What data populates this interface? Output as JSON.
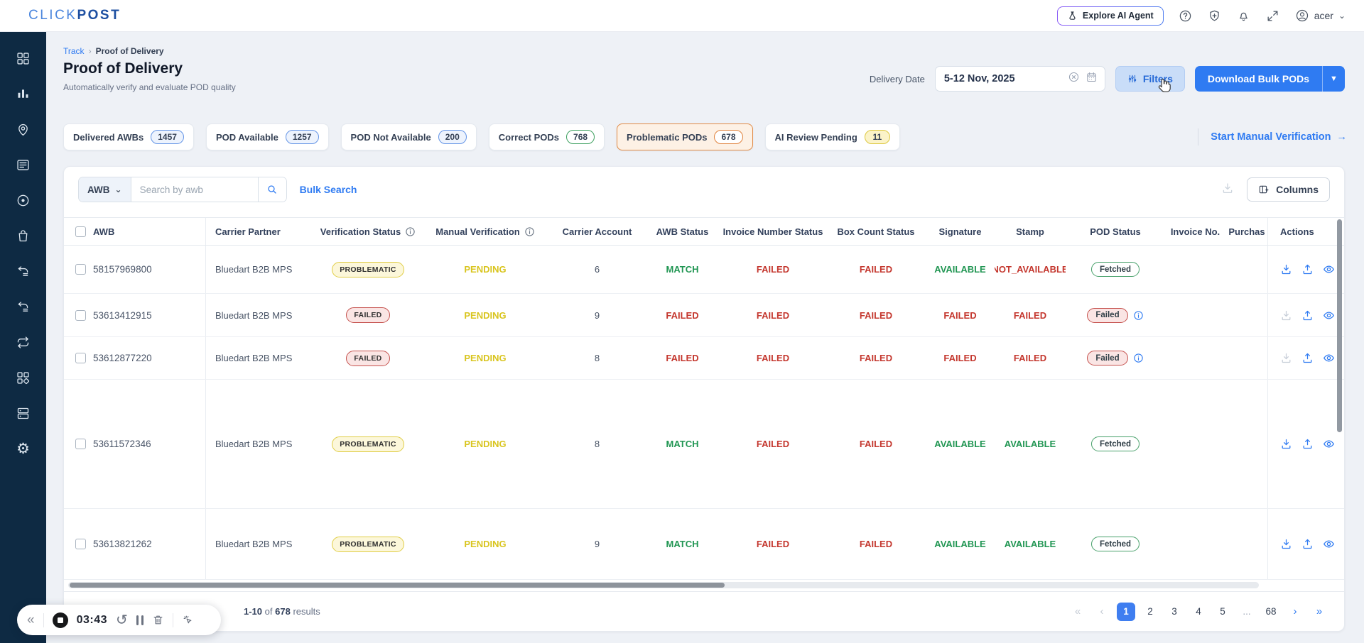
{
  "brand": {
    "logo_click": "CLICK",
    "logo_post": "POST"
  },
  "topbar": {
    "explore_ai_label": "Explore AI Agent",
    "username": "acer"
  },
  "breadcrumb": {
    "parent": "Track",
    "current": "Proof of Delivery"
  },
  "page": {
    "title": "Proof of Delivery",
    "subtitle": "Automatically verify and evaluate POD quality"
  },
  "filters_bar": {
    "delivery_date_label": "Delivery Date",
    "delivery_date_value": "5-12 Nov, 2025",
    "filters_label": "Filters",
    "download_bulk_label": "Download Bulk PODs"
  },
  "manual_verification_link": "Start Manual Verification",
  "chips": [
    {
      "label": "Delivered AWBs",
      "count": "1457",
      "badge": "blue",
      "selected": false
    },
    {
      "label": "POD Available",
      "count": "1257",
      "badge": "blue",
      "selected": false
    },
    {
      "label": "POD Not Available",
      "count": "200",
      "badge": "blue",
      "selected": false
    },
    {
      "label": "Correct PODs",
      "count": "768",
      "badge": "green",
      "selected": false
    },
    {
      "label": "Problematic PODs",
      "count": "678",
      "badge": "orange",
      "selected": true
    },
    {
      "label": "AI Review Pending",
      "count": "11",
      "badge": "yellow",
      "selected": false
    }
  ],
  "search": {
    "category": "AWB",
    "placeholder": "Search by awb",
    "bulk_search_label": "Bulk Search",
    "columns_label": "Columns"
  },
  "table": {
    "columns": [
      {
        "label": "AWB"
      },
      {
        "label": "Carrier Partner"
      },
      {
        "label": "Verification Status",
        "info": true
      },
      {
        "label": "Manual Verification",
        "info": true
      },
      {
        "label": "Carrier Account"
      },
      {
        "label": "AWB Status"
      },
      {
        "label": "Invoice Number Status"
      },
      {
        "label": "Box Count Status"
      },
      {
        "label": "Signature"
      },
      {
        "label": "Stamp"
      },
      {
        "label": "POD Status"
      },
      {
        "label": "Invoice No."
      },
      {
        "label": "Purchas"
      },
      {
        "label": "Actions"
      }
    ],
    "rows": [
      {
        "awb": "58157969800",
        "carrier": "Bluedart B2B MPS",
        "verification": "PROBLEMATIC",
        "manual": "PENDING",
        "account": "6",
        "awb_status": "MATCH",
        "invoice_status": "FAILED",
        "box_count": "FAILED",
        "signature": "AVAILABLE",
        "stamp": "NOT_AVAILABLE",
        "pod": {
          "label": "Fetched",
          "kind": "ok",
          "info": false
        },
        "download_enabled": true
      },
      {
        "awb": "53613412915",
        "carrier": "Bluedart B2B MPS",
        "verification": "FAILED",
        "manual": "PENDING",
        "account": "9",
        "awb_status": "FAILED",
        "invoice_status": "FAILED",
        "box_count": "FAILED",
        "signature": "FAILED",
        "stamp": "FAILED",
        "pod": {
          "label": "Failed",
          "kind": "bad",
          "info": true
        },
        "download_enabled": false
      },
      {
        "awb": "53612877220",
        "carrier": "Bluedart B2B MPS",
        "verification": "FAILED",
        "manual": "PENDING",
        "account": "8",
        "awb_status": "FAILED",
        "invoice_status": "FAILED",
        "box_count": "FAILED",
        "signature": "FAILED",
        "stamp": "FAILED",
        "pod": {
          "label": "Failed",
          "kind": "bad",
          "info": true
        },
        "download_enabled": false
      },
      {
        "awb": "53611572346",
        "carrier": "Bluedart B2B MPS",
        "verification": "PROBLEMATIC",
        "manual": "PENDING",
        "account": "8",
        "awb_status": "MATCH",
        "invoice_status": "FAILED",
        "box_count": "FAILED",
        "signature": "AVAILABLE",
        "stamp": "AVAILABLE",
        "pod": {
          "label": "Fetched",
          "kind": "ok",
          "info": false
        },
        "download_enabled": true
      },
      {
        "awb": "53613821262",
        "carrier": "Bluedart B2B MPS",
        "verification": "PROBLEMATIC",
        "manual": "PENDING",
        "account": "9",
        "awb_status": "MATCH",
        "invoice_status": "FAILED",
        "box_count": "FAILED",
        "signature": "AVAILABLE",
        "stamp": "AVAILABLE",
        "pod": {
          "label": "Fetched",
          "kind": "ok",
          "info": false
        },
        "download_enabled": true
      }
    ]
  },
  "footer": {
    "range": "1-10",
    "of_label": "of",
    "total": "678",
    "results_label": "results",
    "pages": [
      "1",
      "2",
      "3",
      "4",
      "5",
      "...",
      "68"
    ],
    "active_page": "1"
  },
  "recorder": {
    "time": "03:43"
  },
  "colors": {
    "accent": "#2f7bf2",
    "success": "#219653",
    "danger": "#c4372e",
    "warning": "#d9c520",
    "selected_chip": "#e08a45",
    "sidebar_bg": "#0e2a43"
  }
}
